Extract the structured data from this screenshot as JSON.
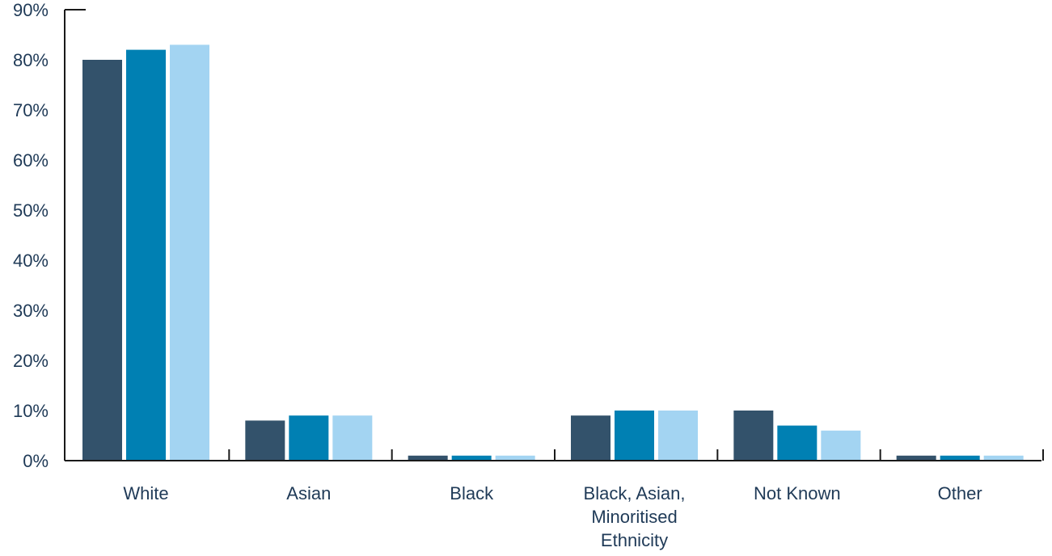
{
  "chart_data": {
    "type": "bar",
    "categories": [
      [
        "White"
      ],
      [
        "Asian"
      ],
      [
        "Black"
      ],
      [
        "Black, Asian,",
        "Minoritised",
        "Ethnicity"
      ],
      [
        "Not Known"
      ],
      [
        "Other"
      ]
    ],
    "series": [
      {
        "values": [
          80,
          8,
          1,
          9,
          10,
          1
        ],
        "color": "#33526b"
      },
      {
        "values": [
          82,
          9,
          1,
          10,
          7,
          1
        ],
        "color": "#0080b3"
      },
      {
        "values": [
          83,
          9,
          1,
          10,
          6,
          1
        ],
        "color": "#a3d4f2"
      }
    ],
    "ylim": [
      0,
      90
    ],
    "yticks": [
      "0%",
      "10%",
      "20%",
      "30%",
      "40%",
      "50%",
      "60%",
      "70%",
      "80%",
      "90%"
    ],
    "axis_color": "#1a1a1a",
    "text_color": "#1f3a57"
  }
}
